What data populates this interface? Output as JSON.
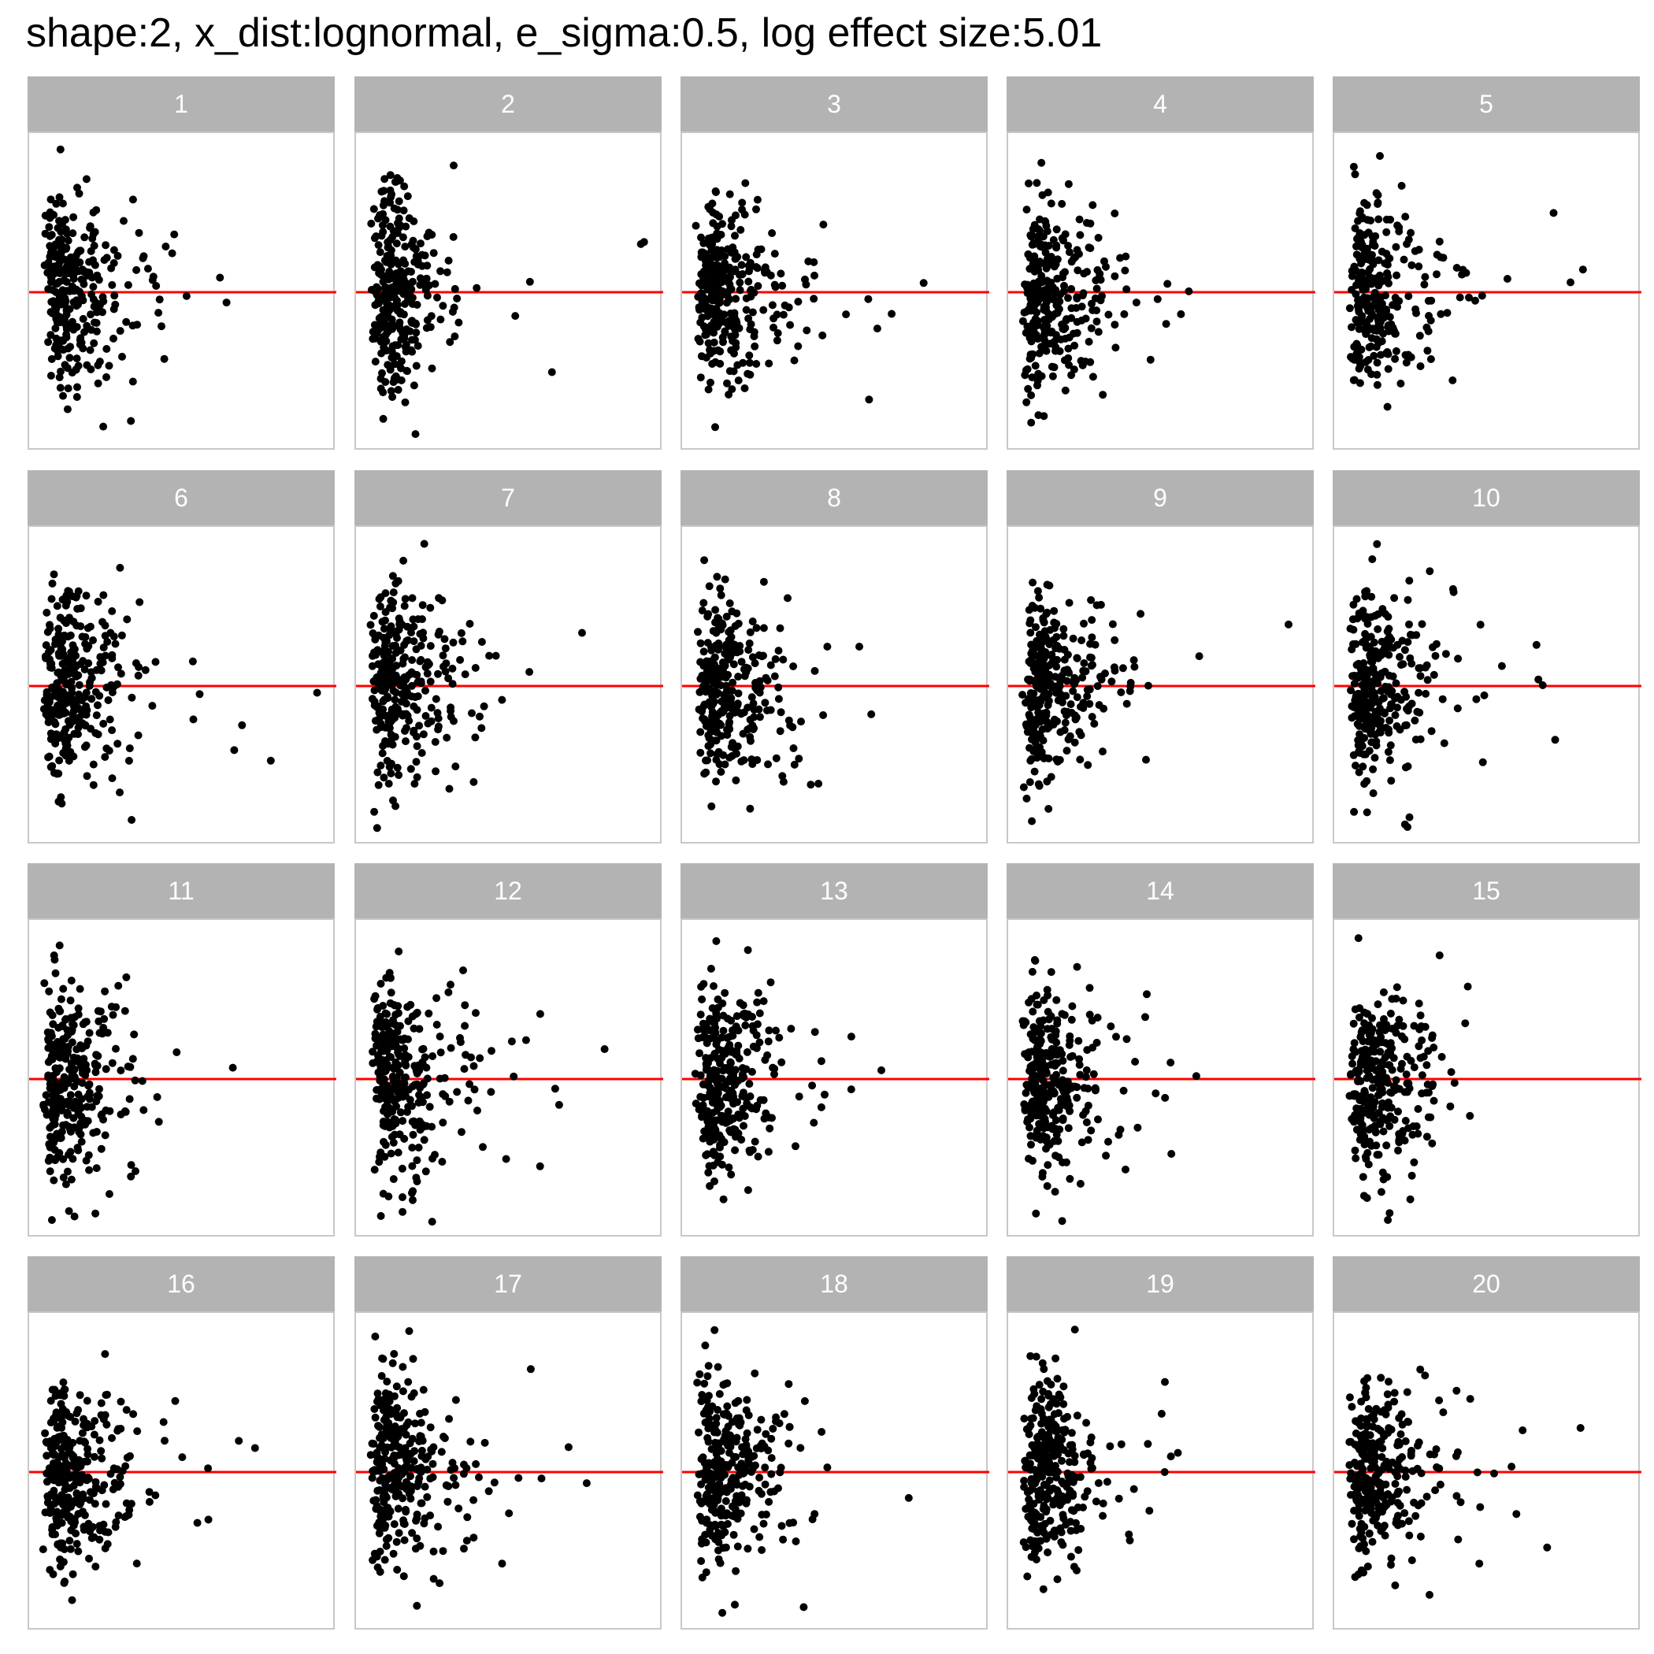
{
  "chart_data": {
    "type": "scatter",
    "title": "shape:2, x_dist:lognormal, e_sigma:0.5, log effect size:5.01",
    "xlabel": "",
    "ylabel": "",
    "grid": false,
    "layout": {
      "rows": 4,
      "cols": 5
    },
    "point_color": "#000000",
    "reference_line": {
      "y": 0,
      "color": "#ff0000"
    },
    "panel_labels": [
      "1",
      "2",
      "3",
      "4",
      "5",
      "6",
      "7",
      "8",
      "9",
      "10",
      "11",
      "12",
      "13",
      "14",
      "15",
      "16",
      "17",
      "18",
      "19",
      "20"
    ],
    "points_per_panel": 300,
    "xlim": [
      0,
      10
    ],
    "ylim": [
      -1.5,
      1.5
    ],
    "x_distribution": "lognormal",
    "y_spread": 0.5
  }
}
